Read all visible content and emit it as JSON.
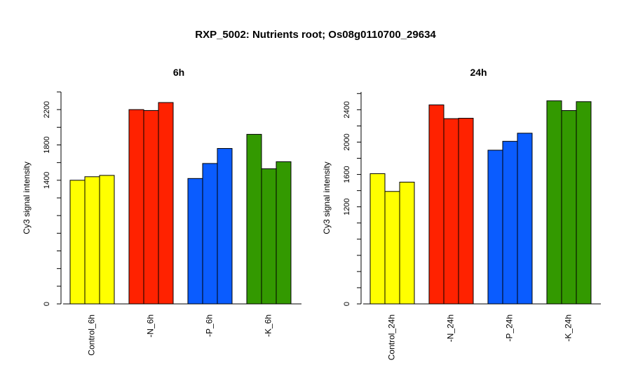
{
  "title": "RXP_5002: Nutrients root; Os08g0110700_29634",
  "chart_data": [
    {
      "type": "bar",
      "title": "6h",
      "ylabel": "Cy3 signal intensity",
      "categories": [
        "Control_6h",
        "-N_6h",
        "-P_6h",
        "-K_6h"
      ],
      "colors": [
        "#ffff00",
        "#ff2200",
        "#0a5cff",
        "#339900"
      ],
      "values": [
        [
          1400,
          1440,
          1455
        ],
        [
          2200,
          2190,
          2280
        ],
        [
          1420,
          1590,
          1760
        ],
        [
          1920,
          1530,
          1610
        ]
      ],
      "yticks": [
        0,
        1400,
        1800,
        2200
      ],
      "ylim": [
        0,
        2400
      ]
    },
    {
      "type": "bar",
      "title": "24h",
      "ylabel": "Cy3 signal intensity",
      "categories": [
        "Control_24h",
        "-N_24h",
        "-P_24h",
        "-K_24h"
      ],
      "colors": [
        "#ffff00",
        "#ff2200",
        "#0a5cff",
        "#339900"
      ],
      "values": [
        [
          1610,
          1390,
          1505
        ],
        [
          2460,
          2290,
          2295
        ],
        [
          1900,
          2010,
          2110
        ],
        [
          2510,
          2390,
          2500
        ]
      ],
      "yticks": [
        0,
        1200,
        1600,
        2000,
        2400
      ],
      "ylim": [
        0,
        2620
      ]
    }
  ]
}
